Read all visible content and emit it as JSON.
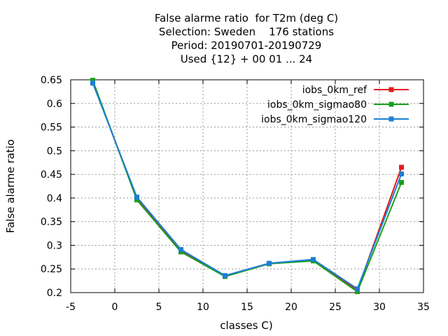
{
  "chart_data": {
    "type": "line",
    "title_lines": [
      "False alarme ratio  for T2m (deg C)",
      "Selection: Sweden    176 stations",
      "Period: 20190701-20190729",
      "Used {12} + 00 01 ... 24"
    ],
    "xlabel": "classes C)",
    "ylabel": "False alarme ratio",
    "xlim": [
      -5,
      35
    ],
    "ylim": [
      0.2,
      0.65
    ],
    "xticks": [
      -5,
      0,
      5,
      10,
      15,
      20,
      25,
      30,
      35
    ],
    "yticks": [
      0.2,
      0.25,
      0.3,
      0.35,
      0.4,
      0.45,
      0.5,
      0.55,
      0.6,
      0.65
    ],
    "xtick_labels": [
      "-5",
      "0",
      "5",
      "10",
      "15",
      "20",
      "25",
      "30",
      "35"
    ],
    "ytick_labels": [
      "0.2",
      "0.25",
      "0.3",
      "0.35",
      "0.4",
      "0.45",
      "0.5",
      "0.55",
      "0.6",
      "0.65"
    ],
    "grid": true,
    "legend_position": "top-right",
    "x": [
      -2.5,
      2.5,
      7.5,
      12.5,
      17.5,
      22.5,
      27.5,
      32.5
    ],
    "series": [
      {
        "name": "iobs_0km_ref",
        "color": "#e31a1c",
        "values": [
          0.646,
          0.398,
          0.289,
          0.235,
          0.261,
          0.268,
          0.205,
          0.465
        ]
      },
      {
        "name": "iobs_0km_sigmao80",
        "color": "#1aa01a",
        "values": [
          0.649,
          0.396,
          0.286,
          0.234,
          0.261,
          0.267,
          0.202,
          0.433
        ]
      },
      {
        "name": "iobs_0km_sigmao120",
        "color": "#1c7ed6",
        "values": [
          0.643,
          0.402,
          0.291,
          0.236,
          0.262,
          0.27,
          0.208,
          0.451
        ]
      }
    ]
  }
}
